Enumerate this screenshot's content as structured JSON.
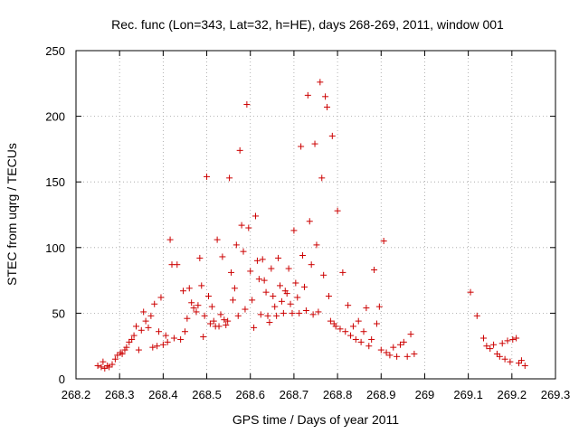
{
  "chart_data": {
    "type": "scatter",
    "title": "Rec. func (Lon=343, Lat=32, h=HE), days 268-269, 2011, window 001",
    "xlabel": "GPS time / Days of year 2011",
    "ylabel": "STEC from uqrg / TECUs",
    "xlim": [
      268.2,
      269.3
    ],
    "ylim": [
      0,
      250
    ],
    "x_ticks": [
      "268.2",
      "268.3",
      "268.4",
      "268.5",
      "268.6",
      "268.7",
      "268.8",
      "268.9",
      "269",
      "269.1",
      "269.2",
      "269.3"
    ],
    "y_ticks": [
      "0",
      "50",
      "100",
      "150",
      "200",
      "250"
    ],
    "grid": true,
    "marker": "+",
    "marker_color": "#cc0000",
    "points": [
      {
        "x": 268.25,
        "y": 10
      },
      {
        "x": 268.258,
        "y": 9
      },
      {
        "x": 268.262,
        "y": 13
      },
      {
        "x": 268.266,
        "y": 8
      },
      {
        "x": 268.272,
        "y": 10
      },
      {
        "x": 268.276,
        "y": 9
      },
      {
        "x": 268.283,
        "y": 11
      },
      {
        "x": 268.29,
        "y": 15
      },
      {
        "x": 268.295,
        "y": 18
      },
      {
        "x": 268.302,
        "y": 20
      },
      {
        "x": 268.306,
        "y": 19
      },
      {
        "x": 268.312,
        "y": 22
      },
      {
        "x": 268.316,
        "y": 24
      },
      {
        "x": 268.322,
        "y": 28
      },
      {
        "x": 268.328,
        "y": 30
      },
      {
        "x": 268.333,
        "y": 33
      },
      {
        "x": 268.338,
        "y": 40
      },
      {
        "x": 268.344,
        "y": 22
      },
      {
        "x": 268.35,
        "y": 37
      },
      {
        "x": 268.355,
        "y": 51
      },
      {
        "x": 268.36,
        "y": 44
      },
      {
        "x": 268.366,
        "y": 39
      },
      {
        "x": 268.372,
        "y": 48
      },
      {
        "x": 268.376,
        "y": 24
      },
      {
        "x": 268.38,
        "y": 57
      },
      {
        "x": 268.386,
        "y": 25
      },
      {
        "x": 268.39,
        "y": 36
      },
      {
        "x": 268.395,
        "y": 62
      },
      {
        "x": 268.4,
        "y": 26
      },
      {
        "x": 268.406,
        "y": 33
      },
      {
        "x": 268.41,
        "y": 28
      },
      {
        "x": 268.416,
        "y": 106
      },
      {
        "x": 268.42,
        "y": 87
      },
      {
        "x": 268.425,
        "y": 31
      },
      {
        "x": 268.432,
        "y": 87
      },
      {
        "x": 268.44,
        "y": 30
      },
      {
        "x": 268.446,
        "y": 67
      },
      {
        "x": 268.45,
        "y": 36
      },
      {
        "x": 268.455,
        "y": 46
      },
      {
        "x": 268.46,
        "y": 69
      },
      {
        "x": 268.465,
        "y": 58
      },
      {
        "x": 268.47,
        "y": 54
      },
      {
        "x": 268.476,
        "y": 51
      },
      {
        "x": 268.48,
        "y": 56
      },
      {
        "x": 268.484,
        "y": 92
      },
      {
        "x": 268.488,
        "y": 71
      },
      {
        "x": 268.492,
        "y": 32
      },
      {
        "x": 268.495,
        "y": 48
      },
      {
        "x": 268.5,
        "y": 154
      },
      {
        "x": 268.504,
        "y": 63
      },
      {
        "x": 268.508,
        "y": 42
      },
      {
        "x": 268.512,
        "y": 55
      },
      {
        "x": 268.516,
        "y": 44
      },
      {
        "x": 268.52,
        "y": 40
      },
      {
        "x": 268.524,
        "y": 106
      },
      {
        "x": 268.528,
        "y": 40
      },
      {
        "x": 268.532,
        "y": 49
      },
      {
        "x": 268.536,
        "y": 93
      },
      {
        "x": 268.54,
        "y": 45
      },
      {
        "x": 268.544,
        "y": 41
      },
      {
        "x": 268.548,
        "y": 44
      },
      {
        "x": 268.552,
        "y": 153
      },
      {
        "x": 268.556,
        "y": 81
      },
      {
        "x": 268.56,
        "y": 60
      },
      {
        "x": 268.564,
        "y": 69
      },
      {
        "x": 268.568,
        "y": 102
      },
      {
        "x": 268.572,
        "y": 48
      },
      {
        "x": 268.576,
        "y": 174
      },
      {
        "x": 268.58,
        "y": 117
      },
      {
        "x": 268.584,
        "y": 97
      },
      {
        "x": 268.588,
        "y": 53
      },
      {
        "x": 268.592,
        "y": 209
      },
      {
        "x": 268.596,
        "y": 115
      },
      {
        "x": 268.6,
        "y": 82
      },
      {
        "x": 268.604,
        "y": 60
      },
      {
        "x": 268.608,
        "y": 39
      },
      {
        "x": 268.612,
        "y": 124
      },
      {
        "x": 268.616,
        "y": 90
      },
      {
        "x": 268.62,
        "y": 76
      },
      {
        "x": 268.624,
        "y": 49
      },
      {
        "x": 268.628,
        "y": 91
      },
      {
        "x": 268.632,
        "y": 75
      },
      {
        "x": 268.636,
        "y": 66
      },
      {
        "x": 268.64,
        "y": 48
      },
      {
        "x": 268.644,
        "y": 43
      },
      {
        "x": 268.648,
        "y": 84
      },
      {
        "x": 268.652,
        "y": 63
      },
      {
        "x": 268.656,
        "y": 55
      },
      {
        "x": 268.66,
        "y": 48
      },
      {
        "x": 268.664,
        "y": 92
      },
      {
        "x": 268.668,
        "y": 71
      },
      {
        "x": 268.672,
        "y": 59
      },
      {
        "x": 268.676,
        "y": 50
      },
      {
        "x": 268.68,
        "y": 67
      },
      {
        "x": 268.684,
        "y": 65
      },
      {
        "x": 268.688,
        "y": 84
      },
      {
        "x": 268.692,
        "y": 57
      },
      {
        "x": 268.696,
        "y": 50
      },
      {
        "x": 268.7,
        "y": 113
      },
      {
        "x": 268.704,
        "y": 73
      },
      {
        "x": 268.708,
        "y": 62
      },
      {
        "x": 268.712,
        "y": 50
      },
      {
        "x": 268.716,
        "y": 177
      },
      {
        "x": 268.72,
        "y": 94
      },
      {
        "x": 268.724,
        "y": 70
      },
      {
        "x": 268.728,
        "y": 52
      },
      {
        "x": 268.732,
        "y": 216
      },
      {
        "x": 268.736,
        "y": 120
      },
      {
        "x": 268.74,
        "y": 87
      },
      {
        "x": 268.744,
        "y": 49
      },
      {
        "x": 268.748,
        "y": 179
      },
      {
        "x": 268.752,
        "y": 102
      },
      {
        "x": 268.756,
        "y": 51
      },
      {
        "x": 268.76,
        "y": 226
      },
      {
        "x": 268.764,
        "y": 153
      },
      {
        "x": 268.768,
        "y": 79
      },
      {
        "x": 268.772,
        "y": 215
      },
      {
        "x": 268.776,
        "y": 207
      },
      {
        "x": 268.78,
        "y": 63
      },
      {
        "x": 268.784,
        "y": 44
      },
      {
        "x": 268.788,
        "y": 185
      },
      {
        "x": 268.792,
        "y": 42
      },
      {
        "x": 268.796,
        "y": 40
      },
      {
        "x": 268.8,
        "y": 128
      },
      {
        "x": 268.806,
        "y": 38
      },
      {
        "x": 268.812,
        "y": 81
      },
      {
        "x": 268.818,
        "y": 36
      },
      {
        "x": 268.824,
        "y": 56
      },
      {
        "x": 268.83,
        "y": 33
      },
      {
        "x": 268.836,
        "y": 40
      },
      {
        "x": 268.842,
        "y": 30
      },
      {
        "x": 268.848,
        "y": 44
      },
      {
        "x": 268.854,
        "y": 28
      },
      {
        "x": 268.86,
        "y": 36
      },
      {
        "x": 268.866,
        "y": 54
      },
      {
        "x": 268.872,
        "y": 25
      },
      {
        "x": 268.878,
        "y": 30
      },
      {
        "x": 268.884,
        "y": 83
      },
      {
        "x": 268.89,
        "y": 42
      },
      {
        "x": 268.896,
        "y": 55
      },
      {
        "x": 268.9,
        "y": 22
      },
      {
        "x": 268.906,
        "y": 105
      },
      {
        "x": 268.912,
        "y": 20
      },
      {
        "x": 268.92,
        "y": 18
      },
      {
        "x": 268.928,
        "y": 24
      },
      {
        "x": 268.936,
        "y": 17
      },
      {
        "x": 268.944,
        "y": 26
      },
      {
        "x": 268.952,
        "y": 28
      },
      {
        "x": 268.96,
        "y": 17
      },
      {
        "x": 268.968,
        "y": 34
      },
      {
        "x": 268.976,
        "y": 19
      },
      {
        "x": 269.105,
        "y": 66
      },
      {
        "x": 269.12,
        "y": 48
      },
      {
        "x": 269.135,
        "y": 31
      },
      {
        "x": 269.142,
        "y": 25
      },
      {
        "x": 269.15,
        "y": 23
      },
      {
        "x": 269.158,
        "y": 26
      },
      {
        "x": 269.166,
        "y": 19
      },
      {
        "x": 269.172,
        "y": 17
      },
      {
        "x": 269.178,
        "y": 27
      },
      {
        "x": 269.184,
        "y": 15
      },
      {
        "x": 269.19,
        "y": 29
      },
      {
        "x": 269.196,
        "y": 13
      },
      {
        "x": 269.202,
        "y": 30
      },
      {
        "x": 269.21,
        "y": 31
      },
      {
        "x": 269.216,
        "y": 12
      },
      {
        "x": 269.222,
        "y": 14
      },
      {
        "x": 269.23,
        "y": 10
      }
    ]
  }
}
